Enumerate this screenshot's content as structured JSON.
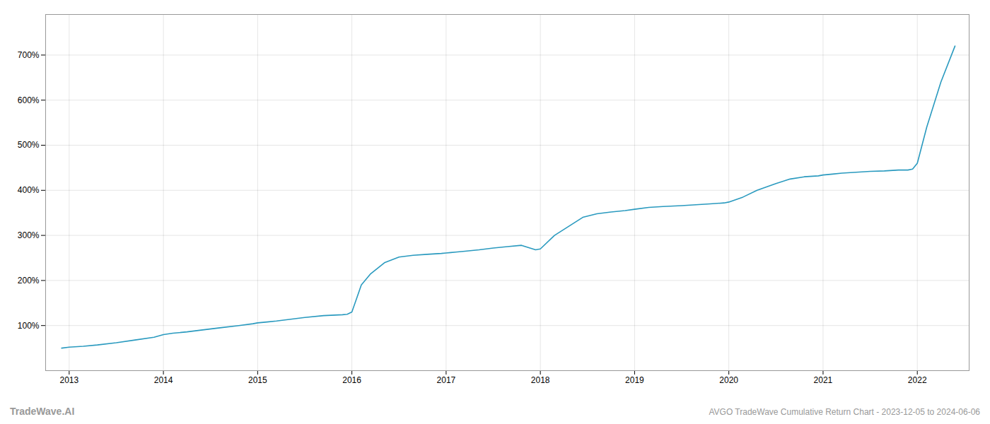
{
  "chart_data": {
    "type": "line",
    "title": "AVGO TradeWave Cumulative Return Chart - 2023-12-05 to 2024-06-06",
    "annotations": [
      "TradeWave.AI"
    ],
    "x": [
      2012.92,
      2013.0,
      2013.15,
      2013.3,
      2013.5,
      2013.7,
      2013.9,
      2014.0,
      2014.1,
      2014.25,
      2014.4,
      2014.6,
      2014.8,
      2014.95,
      2015.0,
      2015.1,
      2015.2,
      2015.35,
      2015.5,
      2015.7,
      2015.9,
      2015.95,
      2016.0,
      2016.05,
      2016.1,
      2016.2,
      2016.35,
      2016.5,
      2016.65,
      2016.8,
      2016.95,
      2017.0,
      2017.05,
      2017.1,
      2017.2,
      2017.35,
      2017.5,
      2017.65,
      2017.8,
      2017.95,
      2018.0,
      2018.15,
      2018.3,
      2018.45,
      2018.6,
      2018.75,
      2018.9,
      2019.0,
      2019.15,
      2019.3,
      2019.5,
      2019.65,
      2019.8,
      2019.95,
      2020.0,
      2020.15,
      2020.3,
      2020.5,
      2020.65,
      2020.8,
      2020.95,
      2021.0,
      2021.1,
      2021.2,
      2021.35,
      2021.5,
      2021.65,
      2021.8,
      2021.85,
      2021.9,
      2021.95,
      2022.0,
      2022.1,
      2022.25,
      2022.4
    ],
    "values": [
      50,
      52,
      54,
      57,
      62,
      68,
      74,
      80,
      83,
      86,
      90,
      95,
      100,
      104,
      106,
      108,
      110,
      114,
      118,
      122,
      124,
      125,
      130,
      160,
      190,
      215,
      240,
      252,
      256,
      258,
      260,
      261,
      262,
      263,
      265,
      268,
      272,
      275,
      278,
      268,
      270,
      300,
      320,
      340,
      348,
      352,
      355,
      358,
      362,
      364,
      366,
      368,
      370,
      372,
      374,
      385,
      400,
      415,
      425,
      430,
      432,
      434,
      436,
      438,
      440,
      442,
      443,
      445,
      445,
      445,
      447,
      460,
      540,
      640,
      720
    ],
    "color": "#2A9ABF",
    "xlim": [
      2012.75,
      2022.55
    ],
    "xticks": [
      2013,
      2014,
      2015,
      2016,
      2017,
      2018,
      2019,
      2020,
      2021,
      2022
    ],
    "ylim": [
      0,
      790
    ],
    "yticks": [
      {
        "value": 100,
        "label": "100%"
      },
      {
        "value": 200,
        "label": "200%"
      },
      {
        "value": 300,
        "label": "300%"
      },
      {
        "value": 400,
        "label": "400%"
      },
      {
        "value": 500,
        "label": "500%"
      },
      {
        "value": 600,
        "label": "600%"
      },
      {
        "value": 700,
        "label": "700%"
      }
    ],
    "grid": true
  }
}
